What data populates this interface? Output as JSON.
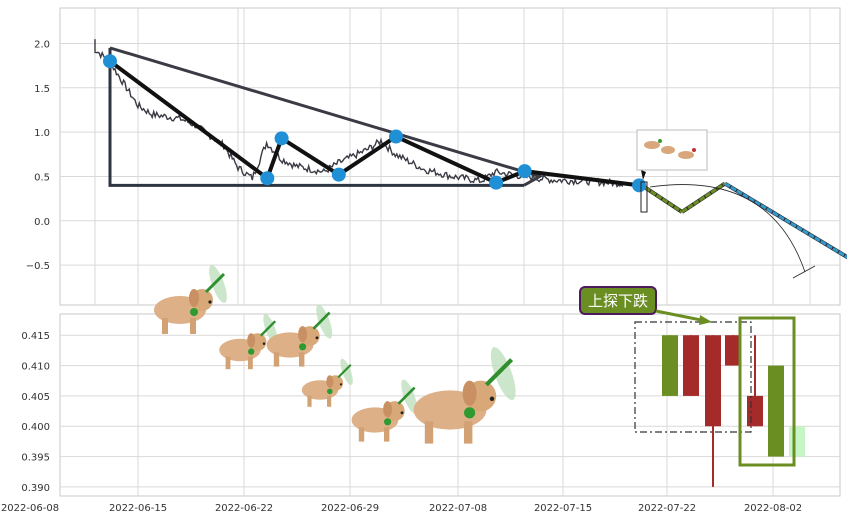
{
  "chart_data": [
    {
      "type": "line",
      "panel": "top",
      "yticks": [
        -0.5,
        0.0,
        0.5,
        1.0,
        1.5,
        2.0
      ],
      "ylim": [
        -0.95,
        2.4
      ],
      "price_series": [
        [
          "2022-06-13",
          2.05
        ],
        [
          "2022-06-13",
          1.93
        ],
        [
          "2022-06-14",
          1.8
        ],
        [
          "2022-06-15",
          1.55
        ],
        [
          "2022-06-16",
          1.3
        ],
        [
          "2022-06-17",
          1.2
        ],
        [
          "2022-06-19",
          1.15
        ],
        [
          "2022-06-20",
          1.08
        ],
        [
          "2022-06-22",
          0.85
        ],
        [
          "2022-06-23",
          0.6
        ],
        [
          "2022-06-24",
          0.48
        ],
        [
          "2022-06-25",
          0.88
        ],
        [
          "2022-06-26",
          0.7
        ],
        [
          "2022-06-27",
          0.62
        ],
        [
          "2022-06-29",
          0.55
        ],
        [
          "2022-06-30",
          0.65
        ],
        [
          "2022-07-02",
          0.8
        ],
        [
          "2022-07-03",
          0.9
        ],
        [
          "2022-07-04",
          0.75
        ],
        [
          "2022-07-06",
          0.58
        ],
        [
          "2022-07-08",
          0.5
        ],
        [
          "2022-07-10",
          0.45
        ],
        [
          "2022-07-11",
          0.55
        ],
        [
          "2022-07-13",
          0.5
        ],
        [
          "2022-07-15",
          0.46
        ],
        [
          "2022-07-17",
          0.45
        ],
        [
          "2022-07-19",
          0.43
        ],
        [
          "2022-07-20",
          0.42
        ]
      ],
      "forecast_segments": [
        {
          "color": "#6b8e23",
          "points": [
            [
              "2022-07-20",
              0.42
            ],
            [
              "2022-07-23",
              0.1
            ]
          ]
        },
        {
          "color": "#6b8e23",
          "points": [
            [
              "2022-07-23",
              0.1
            ],
            [
              "2022-07-26",
              0.42
            ]
          ]
        },
        {
          "color": "#3399cc",
          "points": [
            [
              "2022-07-26",
              0.42
            ],
            [
              "2022-08-05",
              -0.55
            ]
          ]
        }
      ],
      "pivots": [
        [
          "2022-06-13",
          1.8
        ],
        [
          "2022-06-24",
          0.48
        ],
        [
          "2022-06-25",
          0.93
        ],
        [
          "2022-06-29",
          0.52
        ],
        [
          "2022-07-03",
          0.95
        ],
        [
          "2022-07-10",
          0.43
        ],
        [
          "2022-07-12",
          0.56
        ],
        [
          "2022-07-20",
          0.4
        ]
      ],
      "triangle": {
        "top": [
          "2022-06-13",
          1.95
        ],
        "corner": [
          "2022-06-13",
          0.4
        ],
        "end": [
          "2022-07-13",
          0.4
        ],
        "apex": [
          "2022-07-12",
          0.5
        ]
      }
    },
    {
      "type": "candlestick",
      "panel": "bottom",
      "yticks": [
        0.39,
        0.395,
        0.4,
        0.405,
        0.41,
        0.415
      ],
      "ylim": [
        0.3885,
        0.4185
      ],
      "xticks": [
        "2022-06-08",
        "2022-06-15",
        "2022-06-22",
        "2022-06-29",
        "2022-07-08",
        "2022-07-15",
        "2022-07-22",
        "2022-08-02"
      ],
      "candles": [
        {
          "date": "2022-07-21",
          "open": 0.405,
          "close": 0.415,
          "high": 0.415,
          "low": 0.405,
          "color": "#6b8e23"
        },
        {
          "date": "2022-07-23",
          "open": 0.415,
          "close": 0.405,
          "high": 0.415,
          "low": 0.405,
          "color": "#a52a2a"
        },
        {
          "date": "2022-07-25",
          "open": 0.415,
          "close": 0.4,
          "high": 0.415,
          "low": 0.39,
          "color": "#a52a2a"
        },
        {
          "date": "2022-07-27",
          "open": 0.415,
          "close": 0.41,
          "high": 0.415,
          "low": 0.41,
          "color": "#a52a2a"
        },
        {
          "date": "2022-07-29",
          "open": 0.405,
          "close": 0.4,
          "high": 0.415,
          "low": 0.4,
          "color": "#a52a2a"
        },
        {
          "date": "2022-07-31",
          "open": 0.395,
          "close": 0.41,
          "high": 0.41,
          "low": 0.395,
          "color": "#6b8e23"
        },
        {
          "date": "2022-08-02",
          "open": 0.395,
          "close": 0.4,
          "high": 0.4,
          "low": 0.395,
          "color": "#c6f5c6"
        }
      ],
      "annotation": "上探下跌"
    }
  ]
}
